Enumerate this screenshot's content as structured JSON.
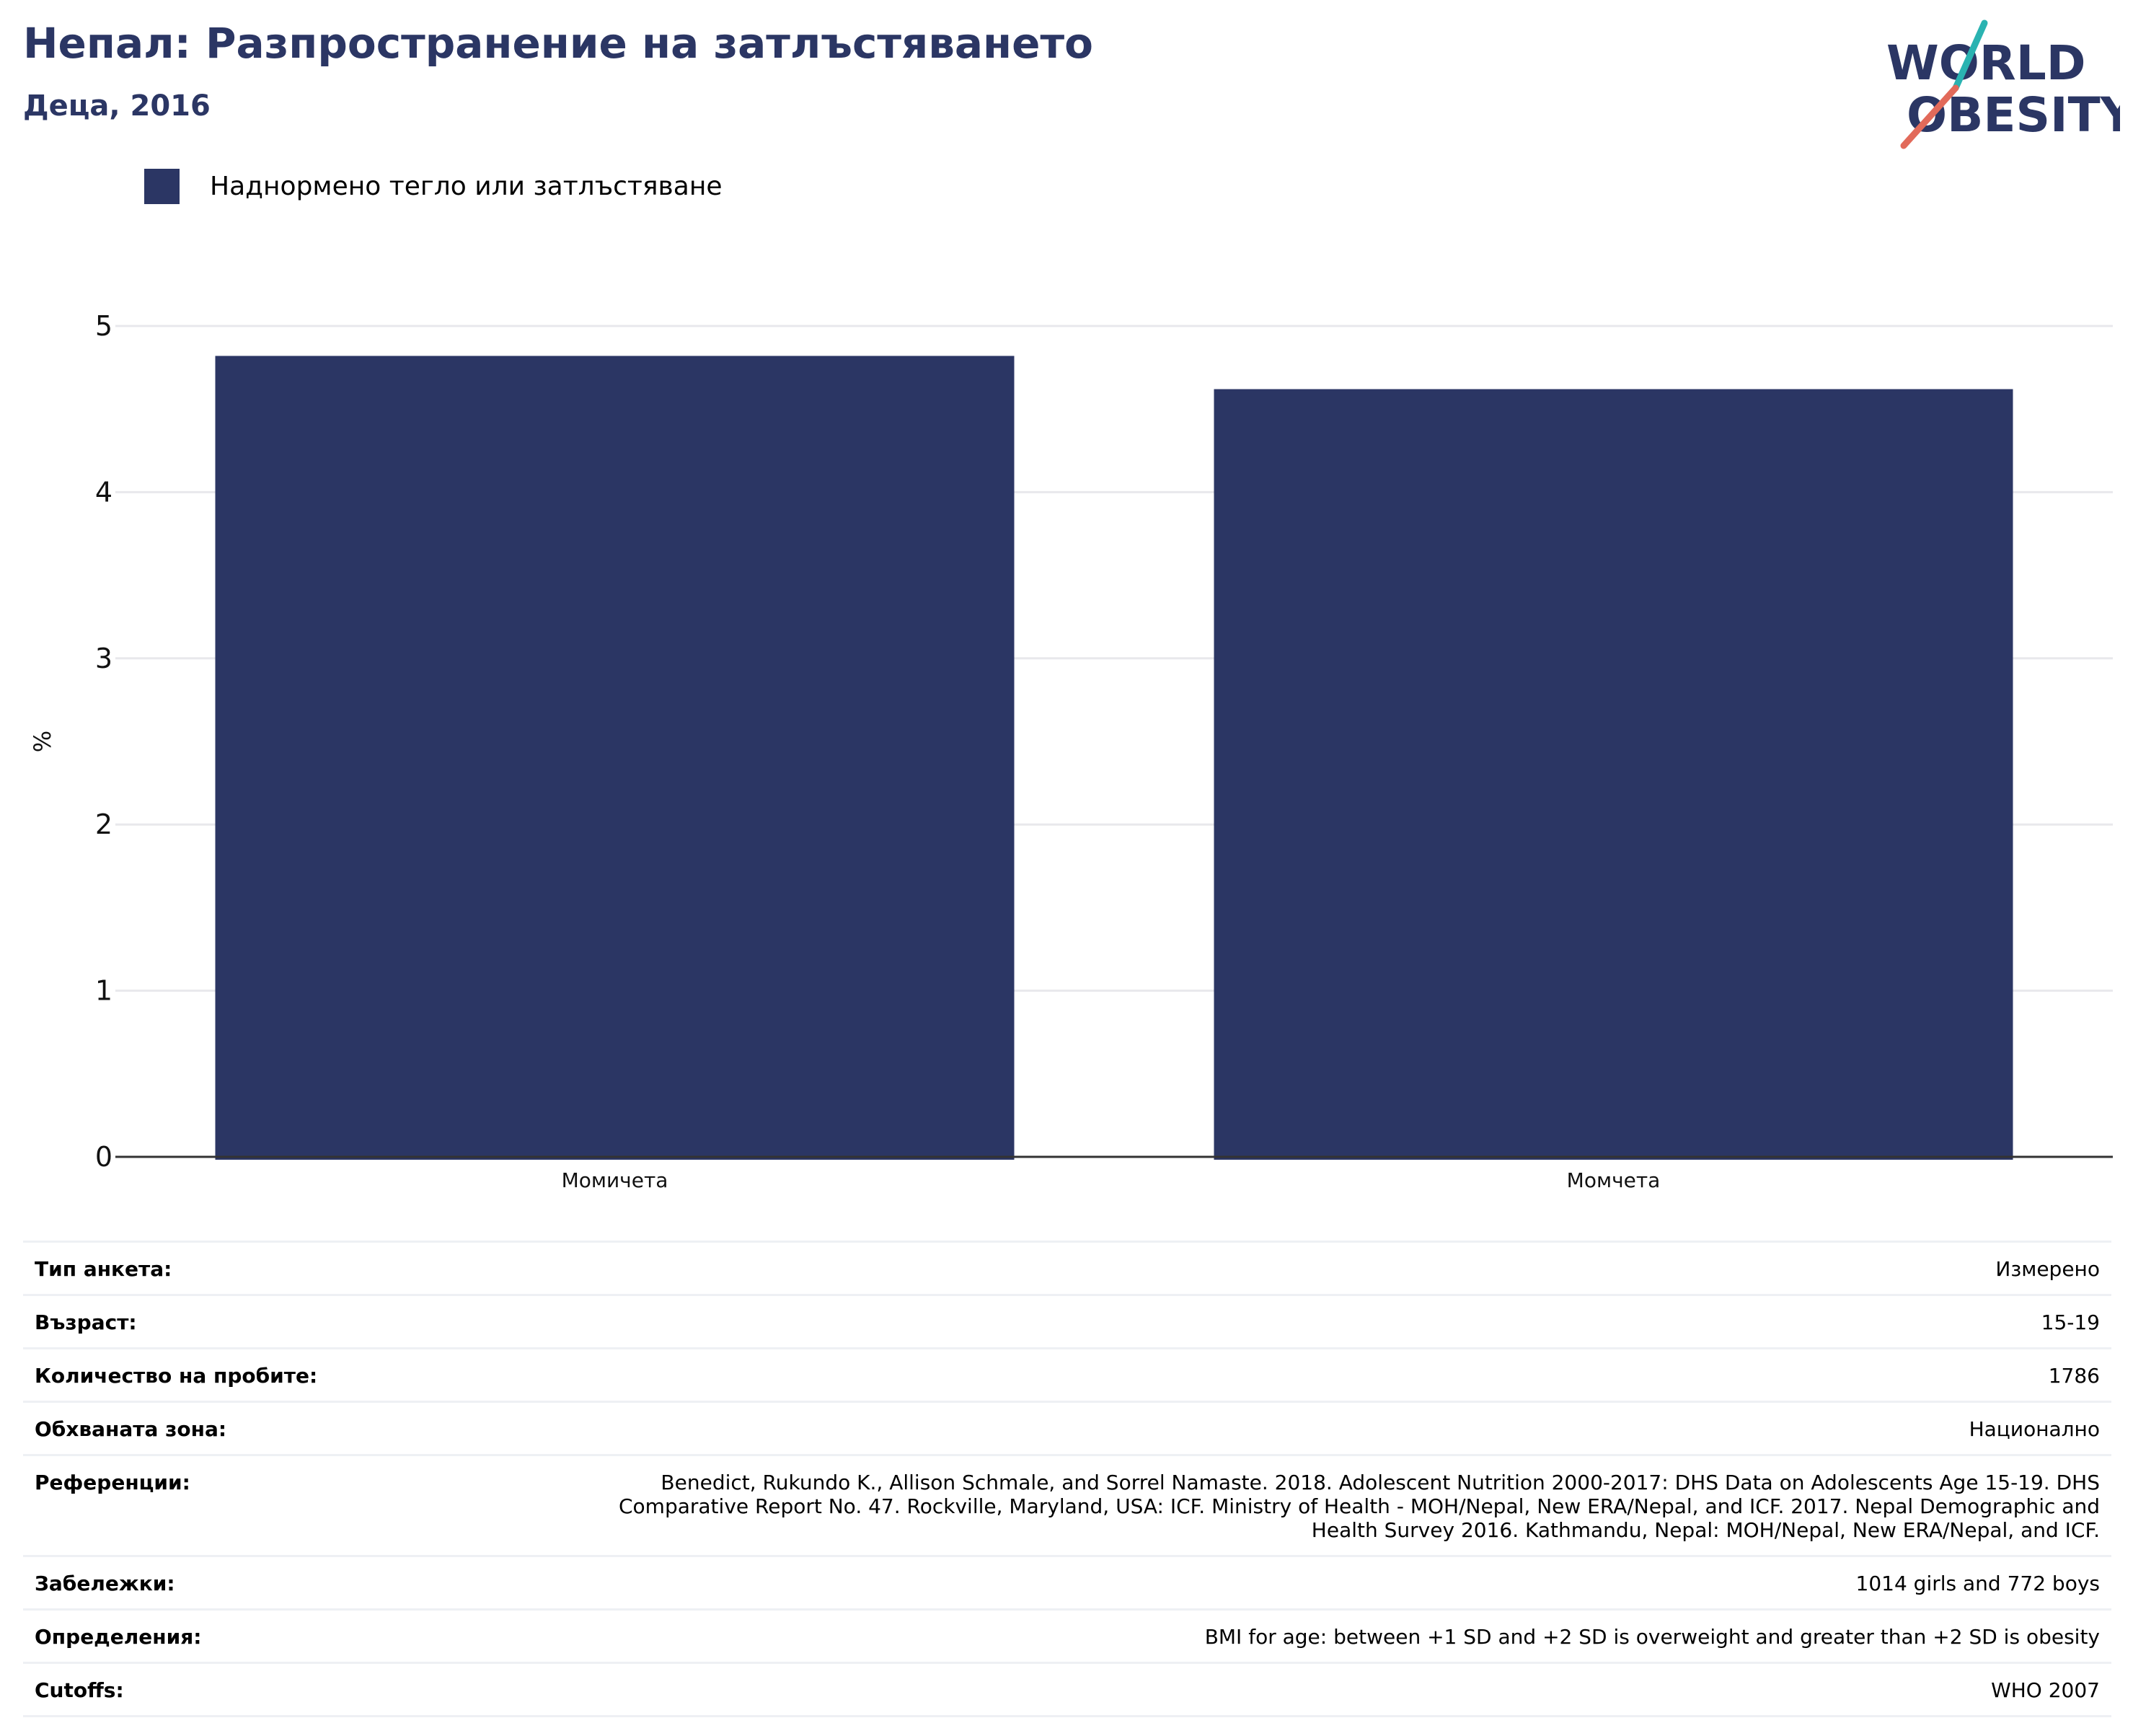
{
  "header": {
    "title": "Непал: Разпространение на затлъстяването",
    "subtitle": "Деца, 2016"
  },
  "logo": {
    "line1": "WORLD",
    "line2": "OBESITY",
    "colors": {
      "navy": "#2b3664",
      "teal": "#2ab3b1",
      "coral": "#e26a5a"
    }
  },
  "chart_data": {
    "type": "bar",
    "categories": [
      "Момичета",
      "Момчета"
    ],
    "series": [
      {
        "name": "Наднормено тегло или затлъстяване",
        "values": [
          4.82,
          4.62
        ],
        "color": "#2b3664"
      }
    ],
    "ylabel": "%",
    "ylim": [
      0,
      5
    ],
    "yticks": [
      0,
      1,
      2,
      3,
      4,
      5
    ],
    "grid": true,
    "legend": "top-left"
  },
  "info": {
    "rows": [
      {
        "label": "Тип анкета:",
        "value": "Измерено"
      },
      {
        "label": "Възраст:",
        "value": "15-19"
      },
      {
        "label": "Количество на пробите:",
        "value": "1786"
      },
      {
        "label": "Обхваната зона:",
        "value": "Национално"
      },
      {
        "label": "Референции:",
        "value": "Benedict, Rukundo K., Allison Schmale, and Sorrel Namaste. 2018. Adolescent Nutrition 2000-2017: DHS Data on Adolescents Age 15-19. DHS Comparative Report No. 47. Rockville, Maryland, USA: ICF. Ministry of Health - MOH/Nepal, New ERA/Nepal, and ICF. 2017. Nepal Demographic and Health Survey 2016. Kathmandu, Nepal: MOH/Nepal, New ERA/Nepal, and ICF."
      },
      {
        "label": "Забележки:",
        "value": "1014 girls and 772 boys"
      },
      {
        "label": "Определения:",
        "value": "BMI for age: between +1 SD and +2 SD is overweight and greater than +2 SD is obesity"
      },
      {
        "label": "Cutoffs:",
        "value": "WHO 2007"
      }
    ]
  }
}
